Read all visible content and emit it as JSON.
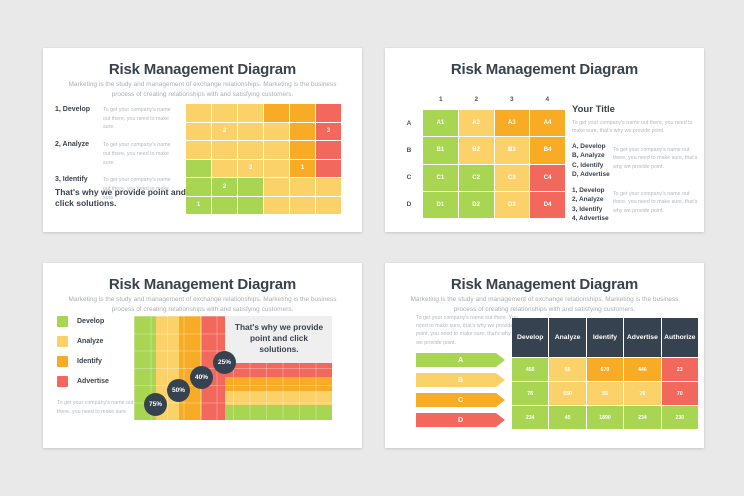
{
  "palette": {
    "green": "#A8D653",
    "yellow": "#FBD26A",
    "orange": "#F8AC26",
    "red": "#F2685C",
    "navy": "#36424F",
    "panel": "#EFEFF0"
  },
  "slides": [
    {
      "title": "Risk Management Diagram",
      "subtitle": "Marketing is the study and management of exchange relationships. Marketing is the business process of creating relationships with and satisfying customers.",
      "items": [
        {
          "label": "1, Develop",
          "desc": "To get your company's name out there, you need to make sure."
        },
        {
          "label": "2, Analyze",
          "desc": "To get your company's name out there, you need to make sure."
        },
        {
          "label": "3, Identify",
          "desc": "To get your company's name out there, you need to make sure."
        }
      ],
      "closing": "That's why we provide point and click solutions.",
      "grid": [
        [
          {
            "c": "yellow"
          },
          {
            "c": "yellow"
          },
          {
            "c": "yellow"
          },
          {
            "c": "orange"
          },
          {
            "c": "orange"
          },
          {
            "c": "red"
          }
        ],
        [
          {
            "c": "yellow"
          },
          {
            "c": "yellow",
            "t": "2"
          },
          {
            "c": "yellow"
          },
          {
            "c": "yellow"
          },
          {
            "c": "orange"
          },
          {
            "c": "red",
            "t": "3"
          }
        ],
        [
          {
            "c": "yellow"
          },
          {
            "c": "yellow"
          },
          {
            "c": "yellow"
          },
          {
            "c": "yellow"
          },
          {
            "c": "orange"
          },
          {
            "c": "red"
          }
        ],
        [
          {
            "c": "green"
          },
          {
            "c": "yellow"
          },
          {
            "c": "yellow",
            "t": "3"
          },
          {
            "c": "yellow"
          },
          {
            "c": "orange",
            "t": "1"
          },
          {
            "c": "red"
          }
        ],
        [
          {
            "c": "green"
          },
          {
            "c": "green",
            "t": "2"
          },
          {
            "c": "green"
          },
          {
            "c": "yellow"
          },
          {
            "c": "yellow"
          },
          {
            "c": "yellow"
          }
        ],
        [
          {
            "c": "green",
            "t": "1"
          },
          {
            "c": "green"
          },
          {
            "c": "green"
          },
          {
            "c": "yellow"
          },
          {
            "c": "yellow"
          },
          {
            "c": "yellow"
          }
        ]
      ]
    },
    {
      "title": "Risk Management Diagram",
      "col_headers": [
        "1",
        "2",
        "3",
        "4"
      ],
      "row_headers": [
        "A",
        "B",
        "C",
        "D"
      ],
      "grid": [
        [
          {
            "c": "green",
            "t": "A1"
          },
          {
            "c": "yellow",
            "t": "A2"
          },
          {
            "c": "orange",
            "t": "A3"
          },
          {
            "c": "orange",
            "t": "A4"
          }
        ],
        [
          {
            "c": "green",
            "t": "B1"
          },
          {
            "c": "yellow",
            "t": "B2"
          },
          {
            "c": "yellow",
            "t": "B3"
          },
          {
            "c": "orange",
            "t": "B4"
          }
        ],
        [
          {
            "c": "green",
            "t": "C1"
          },
          {
            "c": "green",
            "t": "C2"
          },
          {
            "c": "yellow",
            "t": "C3"
          },
          {
            "c": "red",
            "t": "C4"
          }
        ],
        [
          {
            "c": "green",
            "t": "D1"
          },
          {
            "c": "green",
            "t": "D2"
          },
          {
            "c": "yellow",
            "t": "D3"
          },
          {
            "c": "red",
            "t": "D4"
          }
        ]
      ],
      "heading": "Your Title",
      "intro": "To get your company's name out there, you need to make sure, that's why we provide point.",
      "groups": [
        {
          "items": "A, Develop\nB, Analyze\nC, Identify\nD, Advertise",
          "side": "To get your company's name out there, you need to make sure, that's why we provide point."
        },
        {
          "items": "1, Develop\n2, Analyze\n3, Identify\n4, Advertise",
          "side": "To get your company's name out there, you need to make sure, that's why we provide point."
        }
      ]
    },
    {
      "title": "Risk Management Diagram",
      "subtitle": "Marketing is the study and management of exchange relationships. Marketing is the business process of creating relationships with and satisfying customers.",
      "legend": [
        {
          "color": "green",
          "label": "Develop"
        },
        {
          "color": "yellow",
          "label": "Analyze"
        },
        {
          "color": "orange",
          "label": "Identify"
        },
        {
          "color": "red",
          "label": "Advertise"
        }
      ],
      "note": "To get your company's name out there, you need to make sure.",
      "chart": {
        "bands": [
          "green",
          "yellow",
          "orange",
          "red"
        ],
        "percents": [
          "75%",
          "50%",
          "40%",
          "25%"
        ],
        "panel_text": "That's why we provide point and click solutions."
      }
    },
    {
      "title": "Risk Management Diagram",
      "subtitle": "Marketing is the study and management of exchange relationships. Marketing is the business process of creating relationships with and satisfying customers.",
      "para": "To get your company's name out there. You need to make sure, that's why we provide point, you need to make sure, that's why we provide point.",
      "arrows": [
        {
          "color": "green",
          "label": "A"
        },
        {
          "color": "yellow",
          "label": "B"
        },
        {
          "color": "orange",
          "label": "C"
        },
        {
          "color": "red",
          "label": "D"
        }
      ],
      "table": {
        "headers": [
          "Develop",
          "Analyze",
          "Identify",
          "Advertise",
          "Authorize"
        ],
        "rows": [
          [
            {
              "c": "green",
              "t": "456"
            },
            {
              "c": "yellow",
              "t": "55"
            },
            {
              "c": "orange",
              "t": "670"
            },
            {
              "c": "orange",
              "t": "446"
            },
            {
              "c": "red",
              "t": "23"
            }
          ],
          [
            {
              "c": "green",
              "t": "78"
            },
            {
              "c": "yellow",
              "t": "650"
            },
            {
              "c": "yellow",
              "t": "55"
            },
            {
              "c": "yellow",
              "t": "78"
            },
            {
              "c": "red",
              "t": "70"
            }
          ],
          [
            {
              "c": "green",
              "t": "234"
            },
            {
              "c": "green",
              "t": "45"
            },
            {
              "c": "green",
              "t": "1890"
            },
            {
              "c": "green",
              "t": "234"
            },
            {
              "c": "green",
              "t": "230"
            }
          ]
        ]
      }
    }
  ]
}
